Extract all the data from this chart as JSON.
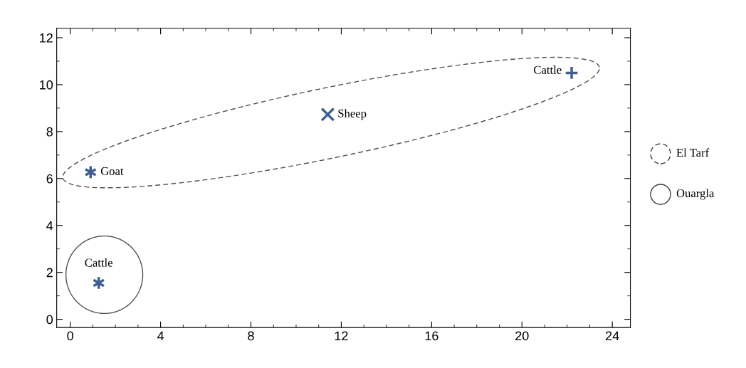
{
  "chart_data": {
    "type": "scatter",
    "series": [
      {
        "name": "El Tarf",
        "color": "#3d5f8f",
        "x": [
          0.9,
          11.4,
          22.2
        ],
        "values": [
          6.27,
          8.73,
          10.5
        ],
        "marker": [
          "star",
          "cross",
          "plus"
        ],
        "line_style": "dashed"
      },
      {
        "name": "Ouargla",
        "color": "#3d5f8f",
        "x": [
          1.26
        ],
        "values": [
          1.55
        ],
        "marker": [
          "star"
        ],
        "line_style": "solid"
      }
    ],
    "annotations": [
      {
        "text": "Goat",
        "x": 0.9,
        "y": 6.27
      },
      {
        "text": "Sheep",
        "x": 11.4,
        "y": 8.73
      },
      {
        "text": "Cattle",
        "x": 22.2,
        "y": 10.5
      },
      {
        "text": "Cattle",
        "x": 1.26,
        "y": 1.55
      }
    ],
    "xlim": [
      -0.6,
      24.8
    ],
    "ylim": [
      -0.35,
      12.4
    ],
    "xticks": [
      0,
      4,
      8,
      12,
      16,
      20,
      24
    ],
    "yticks": [
      0,
      2,
      4,
      6,
      8,
      10,
      12
    ],
    "grid": false,
    "legend": "right"
  }
}
